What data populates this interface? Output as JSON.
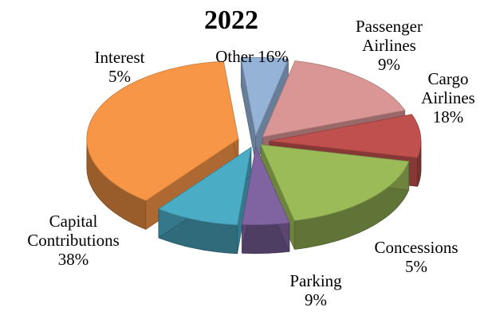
{
  "chart_data": {
    "type": "pie",
    "title": "2022",
    "values_unit": "%",
    "slices": [
      {
        "label_lines": [
          "Passenger",
          "Airlines"
        ],
        "value": 9,
        "color": "#c0504d"
      },
      {
        "label_lines": [
          "Cargo",
          "Airlines"
        ],
        "value": 18,
        "color": "#9bbb59"
      },
      {
        "label_lines": [
          "Concessions"
        ],
        "value": 5,
        "color": "#8064a2"
      },
      {
        "label_lines": [
          "Parking"
        ],
        "value": 9,
        "color": "#4bacc6"
      },
      {
        "label_lines": [
          "Capital",
          "Contributions"
        ],
        "value": 38,
        "color": "#f79646"
      },
      {
        "label_lines": [
          "Interest"
        ],
        "value": 5,
        "color": "#95b3d7"
      },
      {
        "label_lines": [
          "Other"
        ],
        "value": 16,
        "color": "#d99694"
      }
    ]
  }
}
